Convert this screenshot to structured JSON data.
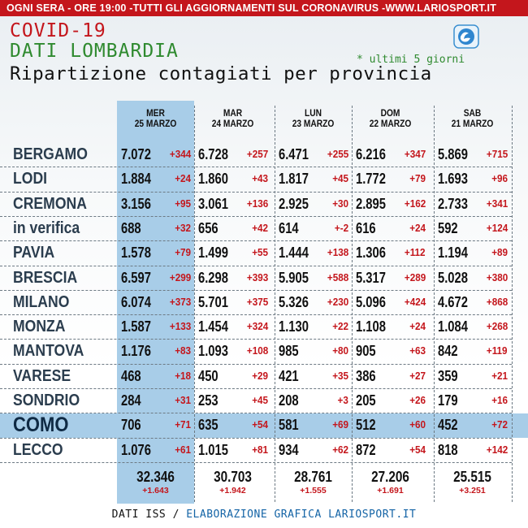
{
  "topbar": {
    "parts": [
      "OGNI SERA - ORE 19:00 - ",
      "TUTTI GLI AGGIORNAMENTI SUL CORONAVIRUS - ",
      "WWW.LARIOSPORT.IT"
    ]
  },
  "title": {
    "line1": "COVID-19",
    "line2": "DATI LOMBARDIA",
    "line3": "Ripartizione contagiati per provincia",
    "note": "* ultimi 5 giorni"
  },
  "logo_icon": "lariosport-logo-icon",
  "colors": {
    "red": "#c4161c",
    "green": "#2f8a2f",
    "highlight": "#a8cde8",
    "footer_blue": "#1464a6"
  },
  "columns": [
    {
      "day": "MER",
      "date": "25 MARZO"
    },
    {
      "day": "MAR",
      "date": "24 MARZO"
    },
    {
      "day": "LUN",
      "date": "23 MARZO"
    },
    {
      "day": "DOM",
      "date": "22 MARZO"
    },
    {
      "day": "SAB",
      "date": "21 MARZO"
    }
  ],
  "rows": [
    {
      "name": "BERGAMO",
      "cells": [
        [
          "7.072",
          "+344"
        ],
        [
          "6.728",
          "+257"
        ],
        [
          "6.471",
          "+255"
        ],
        [
          "6.216",
          "+347"
        ],
        [
          "5.869",
          "+715"
        ]
      ]
    },
    {
      "name": "LODI",
      "cells": [
        [
          "1.884",
          "+24"
        ],
        [
          "1.860",
          "+43"
        ],
        [
          "1.817",
          "+45"
        ],
        [
          "1.772",
          "+79"
        ],
        [
          "1.693",
          "+96"
        ]
      ]
    },
    {
      "name": "CREMONA",
      "cells": [
        [
          "3.156",
          "+95"
        ],
        [
          "3.061",
          "+136"
        ],
        [
          "2.925",
          "+30"
        ],
        [
          "2.895",
          "+162"
        ],
        [
          "2.733",
          "+341"
        ]
      ]
    },
    {
      "name": "in verifica",
      "cells": [
        [
          "688",
          "+32"
        ],
        [
          "656",
          "+42"
        ],
        [
          "614",
          "+-2"
        ],
        [
          "616",
          "+24"
        ],
        [
          "592",
          "+124"
        ]
      ]
    },
    {
      "name": "PAVIA",
      "cells": [
        [
          "1.578",
          "+79"
        ],
        [
          "1.499",
          "+55"
        ],
        [
          "1.444",
          "+138"
        ],
        [
          "1.306",
          "+112"
        ],
        [
          "1.194",
          "+89"
        ]
      ]
    },
    {
      "name": "BRESCIA",
      "cells": [
        [
          "6.597",
          "+299"
        ],
        [
          "6.298",
          "+393"
        ],
        [
          "5.905",
          "+588"
        ],
        [
          "5.317",
          "+289"
        ],
        [
          "5.028",
          "+380"
        ]
      ]
    },
    {
      "name": "MILANO",
      "cells": [
        [
          "6.074",
          "+373"
        ],
        [
          "5.701",
          "+375"
        ],
        [
          "5.326",
          "+230"
        ],
        [
          "5.096",
          "+424"
        ],
        [
          "4.672",
          "+868"
        ]
      ]
    },
    {
      "name": "MONZA",
      "cells": [
        [
          "1.587",
          "+133"
        ],
        [
          "1.454",
          "+324"
        ],
        [
          "1.130",
          "+22"
        ],
        [
          "1.108",
          "+24"
        ],
        [
          "1.084",
          "+268"
        ]
      ]
    },
    {
      "name": "MANTOVA",
      "cells": [
        [
          "1.176",
          "+83"
        ],
        [
          "1.093",
          "+108"
        ],
        [
          "985",
          "+80"
        ],
        [
          "905",
          "+63"
        ],
        [
          "842",
          "+119"
        ]
      ]
    },
    {
      "name": "VARESE",
      "cells": [
        [
          "468",
          "+18"
        ],
        [
          "450",
          "+29"
        ],
        [
          "421",
          "+35"
        ],
        [
          "386",
          "+27"
        ],
        [
          "359",
          "+21"
        ]
      ]
    },
    {
      "name": "SONDRIO",
      "cells": [
        [
          "284",
          "+31"
        ],
        [
          "253",
          "+45"
        ],
        [
          "208",
          "+3"
        ],
        [
          "205",
          "+26"
        ],
        [
          "179",
          "+16"
        ]
      ]
    },
    {
      "name": "COMO",
      "cells": [
        [
          "706",
          "+71"
        ],
        [
          "635",
          "+54"
        ],
        [
          "581",
          "+69"
        ],
        [
          "512",
          "+60"
        ],
        [
          "452",
          "+72"
        ]
      ]
    },
    {
      "name": "LECCO",
      "cells": [
        [
          "1.076",
          "+61"
        ],
        [
          "1.015",
          "+81"
        ],
        [
          "934",
          "+62"
        ],
        [
          "872",
          "+54"
        ],
        [
          "818",
          "+142"
        ]
      ]
    }
  ],
  "totals": [
    {
      "value": "32.346",
      "delta": "+1.643"
    },
    {
      "value": "30.703",
      "delta": "+1.942"
    },
    {
      "value": "28.761",
      "delta": "+1.555"
    },
    {
      "value": "27.206",
      "delta": "+1.691"
    },
    {
      "value": "25.515",
      "delta": "+3.251"
    }
  ],
  "footer": {
    "left": "DATI ISS / ",
    "right": "ELABORAZIONE GRAFICA LARIOSPORT.IT"
  }
}
